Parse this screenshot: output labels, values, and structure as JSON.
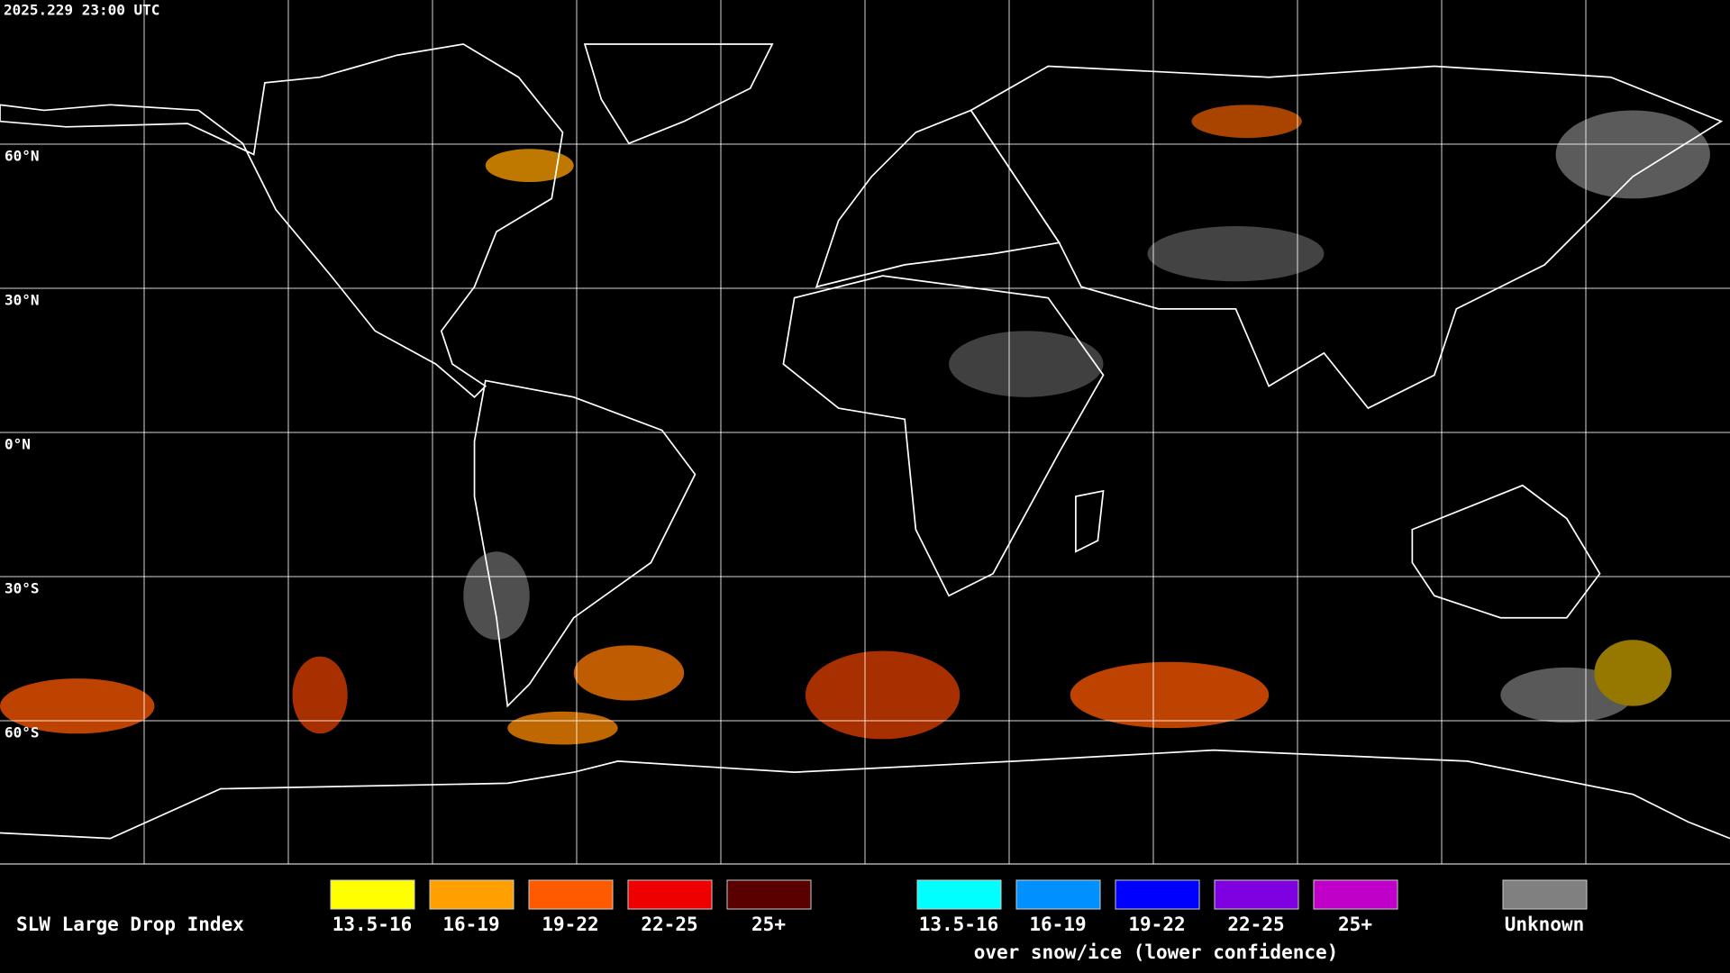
{
  "header": {
    "timestamp": "2025.229 23:00 UTC"
  },
  "map": {
    "latitude_labels": [
      "60°N",
      "30°N",
      "0°N",
      "30°S",
      "60°S"
    ]
  },
  "legend": {
    "title": "SLW Large Drop Index",
    "groups": [
      {
        "items": [
          {
            "label": "13.5-16",
            "color": "#ffff00"
          },
          {
            "label": "16-19",
            "color": "#ffa000"
          },
          {
            "label": "19-22",
            "color": "#ff5a00"
          },
          {
            "label": "22-25",
            "color": "#ee0000"
          },
          {
            "label": "25+",
            "color": "#5a0000"
          }
        ]
      },
      {
        "items": [
          {
            "label": "13.5-16",
            "color": "#00ffff"
          },
          {
            "label": "16-19",
            "color": "#0090ff"
          },
          {
            "label": "19-22",
            "color": "#0000ff"
          },
          {
            "label": "22-25",
            "color": "#7f00e0"
          },
          {
            "label": "25+",
            "color": "#c000c8"
          }
        ],
        "caption": "over snow/ice (lower confidence)"
      }
    ],
    "unknown": {
      "label": "Unknown",
      "color": "#808080"
    }
  }
}
